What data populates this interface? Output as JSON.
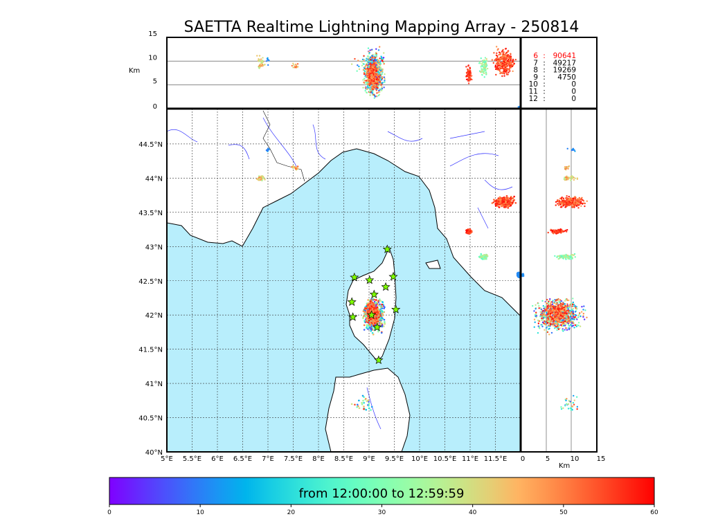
{
  "chart_data": {
    "type": "scatter",
    "title": "SAETTA Realtime Lightning Mapping Array - 250814",
    "map": {
      "lon_range": [
        5,
        12
      ],
      "lat_range": [
        40,
        45
      ],
      "lon_ticks": [
        "5°E",
        "5.5°E",
        "6°E",
        "6.5°E",
        "7°E",
        "7.5°E",
        "8°E",
        "8.5°E",
        "9°E",
        "9.5°E",
        "10°E",
        "10.5°E",
        "11°E",
        "11.5°E"
      ],
      "lat_ticks": [
        "40°N",
        "40.5°N",
        "41°N",
        "41.5°N",
        "42°N",
        "42.5°N",
        "43°N",
        "43.5°N",
        "44°N",
        "44.5°N"
      ],
      "grid": true
    },
    "altitude_panel": {
      "ylabel": "Km",
      "range": [
        0,
        15
      ],
      "ticks": [
        "0",
        "5",
        "10",
        "15"
      ]
    },
    "lat_alt_panel": {
      "xlabel": "Km",
      "range": [
        0,
        15
      ],
      "ticks": [
        "0",
        "5",
        "10",
        "15"
      ]
    },
    "station_counts": {
      "rows": [
        {
          "stations": "6",
          "count": "90641",
          "highlight": true
        },
        {
          "stations": "7",
          "count": "49217",
          "highlight": false
        },
        {
          "stations": "8",
          "count": "19269",
          "highlight": false
        },
        {
          "stations": "9",
          "count": "4750",
          "highlight": false
        },
        {
          "stations": "10",
          "count": "0",
          "highlight": false
        },
        {
          "stations": "11",
          "count": "0",
          "highlight": false
        },
        {
          "stations": "12",
          "count": "0",
          "highlight": false
        }
      ],
      "sep": ":"
    },
    "stations": [
      [
        8.71,
        42.55
      ],
      [
        9.01,
        42.51
      ],
      [
        9.36,
        42.96
      ],
      [
        9.48,
        42.56
      ],
      [
        9.33,
        42.41
      ],
      [
        8.66,
        42.19
      ],
      [
        9.1,
        42.3
      ],
      [
        9.53,
        42.08
      ],
      [
        8.68,
        41.97
      ],
      [
        9.05,
        42.0
      ],
      [
        9.16,
        41.82
      ],
      [
        9.19,
        41.34
      ]
    ],
    "clusters": [
      {
        "lon": [
          8.85,
          9.35
        ],
        "lat": [
          41.7,
          42.3
        ],
        "alt": [
          1,
          13.5
        ],
        "time": [
          0,
          60
        ],
        "n": 700
      },
      {
        "lon": [
          8.9,
          9.25
        ],
        "lat": [
          41.8,
          42.25
        ],
        "alt": [
          3,
          11
        ],
        "time": [
          45,
          60
        ],
        "n": 300
      },
      {
        "lon": [
          11.4,
          11.95
        ],
        "lat": [
          43.55,
          43.75
        ],
        "alt": [
          6,
          13.5
        ],
        "time": [
          48,
          60
        ],
        "n": 300
      },
      {
        "lon": [
          10.9,
          11.05
        ],
        "lat": [
          43.17,
          43.28
        ],
        "alt": [
          5,
          9.5
        ],
        "time": [
          52,
          60
        ],
        "n": 80
      },
      {
        "lon": [
          11.15,
          11.4
        ],
        "lat": [
          42.8,
          42.9
        ],
        "alt": [
          6,
          12
        ],
        "time": [
          25,
          42
        ],
        "n": 80
      },
      {
        "lon": [
          6.75,
          6.95
        ],
        "lat": [
          43.95,
          44.05
        ],
        "alt": [
          7,
          12
        ],
        "time": [
          35,
          50
        ],
        "n": 40
      },
      {
        "lon": [
          7.45,
          7.65
        ],
        "lat": [
          44.1,
          44.2
        ],
        "alt": [
          8,
          10
        ],
        "time": [
          40,
          55
        ],
        "n": 15
      },
      {
        "lon": [
          6.95,
          7.05
        ],
        "lat": [
          44.38,
          44.45
        ],
        "alt": [
          9,
          11
        ],
        "time": [
          8,
          14
        ],
        "n": 8
      },
      {
        "lon": [
          8.6,
          9.2
        ],
        "lat": [
          40.5,
          40.9
        ],
        "alt": [
          7,
          12
        ],
        "time": [
          5,
          58
        ],
        "n": 30
      },
      {
        "lon": [
          11.95,
          12
        ],
        "lat": [
          42.55,
          42.62
        ],
        "alt": [
          0,
          0.5
        ],
        "time": [
          10,
          12
        ],
        "n": 20
      }
    ],
    "colorbar": {
      "label": "from 12:00:00 to 12:59:59",
      "range": [
        0,
        60
      ],
      "ticks": [
        "0",
        "10",
        "20",
        "30",
        "40",
        "50",
        "60"
      ],
      "colormap": "rainbow"
    }
  },
  "colors": {
    "sea": "#b8eefc",
    "land": "#ffffff",
    "rivers": "#3333ff",
    "stars": "#7fff00",
    "highlight": "#ff0000"
  }
}
